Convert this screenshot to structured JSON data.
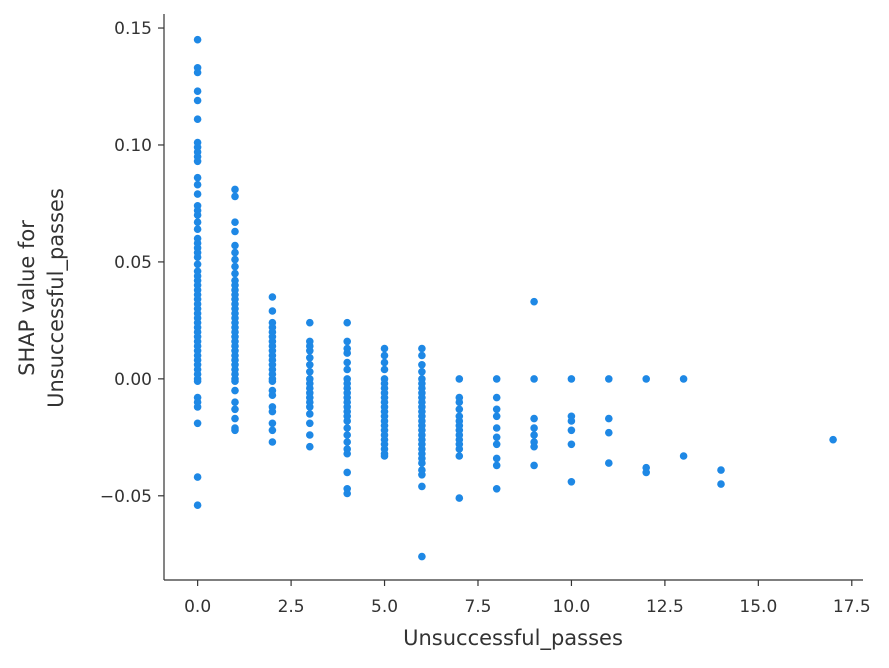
{
  "chart_data": {
    "type": "scatter",
    "title": "",
    "xlabel": "Unsuccessful_passes",
    "ylabel_lines": [
      "SHAP value for",
      "Unsuccessful_passes"
    ],
    "xlim": [
      -0.9,
      17.8
    ],
    "ylim": [
      -0.086,
      0.156
    ],
    "x_ticks": [
      0.0,
      2.5,
      5.0,
      7.5,
      10.0,
      12.5,
      15.0,
      17.5
    ],
    "x_tick_labels": [
      "0.0",
      "2.5",
      "5.0",
      "7.5",
      "10.0",
      "12.5",
      "15.0",
      "17.5"
    ],
    "y_ticks": [
      -0.05,
      0.0,
      0.05,
      0.1,
      0.15
    ],
    "y_tick_labels": [
      "−0.05",
      "0.00",
      "0.05",
      "0.10",
      "0.15"
    ],
    "grid": false,
    "marker_color": "#1E88E5",
    "series": [
      {
        "points": [
          [
            0,
            0.145
          ],
          [
            0,
            0.133
          ],
          [
            0,
            0.131
          ],
          [
            0,
            0.123
          ],
          [
            0,
            0.119
          ],
          [
            0,
            0.111
          ],
          [
            0,
            0.101
          ],
          [
            0,
            0.099
          ],
          [
            0,
            0.097
          ],
          [
            0,
            0.095
          ],
          [
            0,
            0.093
          ],
          [
            0,
            0.086
          ],
          [
            0,
            0.083
          ],
          [
            0,
            0.079
          ],
          [
            0,
            0.074
          ],
          [
            0,
            0.072
          ],
          [
            0,
            0.07
          ],
          [
            0,
            0.067
          ],
          [
            0,
            0.064
          ],
          [
            0,
            0.06
          ],
          [
            0,
            0.058
          ],
          [
            0,
            0.056
          ],
          [
            0,
            0.054
          ],
          [
            0,
            0.052
          ],
          [
            0,
            0.049
          ],
          [
            0,
            0.046
          ],
          [
            0,
            0.044
          ],
          [
            0,
            0.042
          ],
          [
            0,
            0.04
          ],
          [
            0,
            0.038
          ],
          [
            0,
            0.036
          ],
          [
            0,
            0.034
          ],
          [
            0,
            0.032
          ],
          [
            0,
            0.03
          ],
          [
            0,
            0.028
          ],
          [
            0,
            0.026
          ],
          [
            0,
            0.024
          ],
          [
            0,
            0.022
          ],
          [
            0,
            0.02
          ],
          [
            0,
            0.018
          ],
          [
            0,
            0.016
          ],
          [
            0,
            0.014
          ],
          [
            0,
            0.012
          ],
          [
            0,
            0.01
          ],
          [
            0,
            0.008
          ],
          [
            0,
            0.006
          ],
          [
            0,
            0.004
          ],
          [
            0,
            0.002
          ],
          [
            0,
            0.0
          ],
          [
            0,
            -0.001
          ],
          [
            0,
            -0.008
          ],
          [
            0,
            -0.01
          ],
          [
            0,
            -0.012
          ],
          [
            0,
            -0.019
          ],
          [
            0,
            -0.042
          ],
          [
            0,
            -0.054
          ],
          [
            1,
            0.081
          ],
          [
            1,
            0.078
          ],
          [
            1,
            0.067
          ],
          [
            1,
            0.063
          ],
          [
            1,
            0.057
          ],
          [
            1,
            0.054
          ],
          [
            1,
            0.051
          ],
          [
            1,
            0.048
          ],
          [
            1,
            0.045
          ],
          [
            1,
            0.042
          ],
          [
            1,
            0.04
          ],
          [
            1,
            0.038
          ],
          [
            1,
            0.036
          ],
          [
            1,
            0.034
          ],
          [
            1,
            0.032
          ],
          [
            1,
            0.03
          ],
          [
            1,
            0.028
          ],
          [
            1,
            0.026
          ],
          [
            1,
            0.024
          ],
          [
            1,
            0.022
          ],
          [
            1,
            0.02
          ],
          [
            1,
            0.018
          ],
          [
            1,
            0.016
          ],
          [
            1,
            0.014
          ],
          [
            1,
            0.012
          ],
          [
            1,
            0.01
          ],
          [
            1,
            0.008
          ],
          [
            1,
            0.006
          ],
          [
            1,
            0.004
          ],
          [
            1,
            0.002
          ],
          [
            1,
            0.0
          ],
          [
            1,
            -0.001
          ],
          [
            1,
            -0.005
          ],
          [
            1,
            -0.01
          ],
          [
            1,
            -0.013
          ],
          [
            1,
            -0.017
          ],
          [
            1,
            -0.021
          ],
          [
            1,
            -0.022
          ],
          [
            2,
            0.035
          ],
          [
            2,
            0.029
          ],
          [
            2,
            0.024
          ],
          [
            2,
            0.022
          ],
          [
            2,
            0.02
          ],
          [
            2,
            0.018
          ],
          [
            2,
            0.016
          ],
          [
            2,
            0.014
          ],
          [
            2,
            0.012
          ],
          [
            2,
            0.01
          ],
          [
            2,
            0.008
          ],
          [
            2,
            0.006
          ],
          [
            2,
            0.004
          ],
          [
            2,
            0.002
          ],
          [
            2,
            0.0
          ],
          [
            2,
            -0.001
          ],
          [
            2,
            -0.005
          ],
          [
            2,
            -0.007
          ],
          [
            2,
            -0.012
          ],
          [
            2,
            -0.014
          ],
          [
            2,
            -0.019
          ],
          [
            2,
            -0.022
          ],
          [
            2,
            -0.027
          ],
          [
            3,
            0.024
          ],
          [
            3,
            0.016
          ],
          [
            3,
            0.014
          ],
          [
            3,
            0.012
          ],
          [
            3,
            0.009
          ],
          [
            3,
            0.006
          ],
          [
            3,
            0.003
          ],
          [
            3,
            0.0
          ],
          [
            3,
            -0.002
          ],
          [
            3,
            -0.004
          ],
          [
            3,
            -0.006
          ],
          [
            3,
            -0.008
          ],
          [
            3,
            -0.01
          ],
          [
            3,
            -0.012
          ],
          [
            3,
            -0.015
          ],
          [
            3,
            -0.019
          ],
          [
            3,
            -0.024
          ],
          [
            3,
            -0.029
          ],
          [
            4,
            0.024
          ],
          [
            4,
            0.016
          ],
          [
            4,
            0.013
          ],
          [
            4,
            0.011
          ],
          [
            4,
            0.007
          ],
          [
            4,
            0.004
          ],
          [
            4,
            0.0
          ],
          [
            4,
            -0.002
          ],
          [
            4,
            -0.004
          ],
          [
            4,
            -0.006
          ],
          [
            4,
            -0.008
          ],
          [
            4,
            -0.01
          ],
          [
            4,
            -0.012
          ],
          [
            4,
            -0.014
          ],
          [
            4,
            -0.016
          ],
          [
            4,
            -0.018
          ],
          [
            4,
            -0.021
          ],
          [
            4,
            -0.024
          ],
          [
            4,
            -0.027
          ],
          [
            4,
            -0.03
          ],
          [
            4,
            -0.032
          ],
          [
            4,
            -0.04
          ],
          [
            4,
            -0.047
          ],
          [
            4,
            -0.049
          ],
          [
            5,
            0.013
          ],
          [
            5,
            0.01
          ],
          [
            5,
            0.007
          ],
          [
            5,
            0.004
          ],
          [
            5,
            0.0
          ],
          [
            5,
            -0.002
          ],
          [
            5,
            -0.004
          ],
          [
            5,
            -0.006
          ],
          [
            5,
            -0.008
          ],
          [
            5,
            -0.01
          ],
          [
            5,
            -0.012
          ],
          [
            5,
            -0.014
          ],
          [
            5,
            -0.016
          ],
          [
            5,
            -0.018
          ],
          [
            5,
            -0.02
          ],
          [
            5,
            -0.022
          ],
          [
            5,
            -0.024
          ],
          [
            5,
            -0.026
          ],
          [
            5,
            -0.028
          ],
          [
            5,
            -0.03
          ],
          [
            5,
            -0.032
          ],
          [
            5,
            -0.033
          ],
          [
            6,
            0.013
          ],
          [
            6,
            0.01
          ],
          [
            6,
            0.006
          ],
          [
            6,
            0.003
          ],
          [
            6,
            0.0
          ],
          [
            6,
            -0.002
          ],
          [
            6,
            -0.004
          ],
          [
            6,
            -0.006
          ],
          [
            6,
            -0.008
          ],
          [
            6,
            -0.01
          ],
          [
            6,
            -0.012
          ],
          [
            6,
            -0.014
          ],
          [
            6,
            -0.016
          ],
          [
            6,
            -0.018
          ],
          [
            6,
            -0.02
          ],
          [
            6,
            -0.022
          ],
          [
            6,
            -0.024
          ],
          [
            6,
            -0.026
          ],
          [
            6,
            -0.028
          ],
          [
            6,
            -0.03
          ],
          [
            6,
            -0.032
          ],
          [
            6,
            -0.034
          ],
          [
            6,
            -0.036
          ],
          [
            6,
            -0.039
          ],
          [
            6,
            -0.041
          ],
          [
            6,
            -0.046
          ],
          [
            6,
            -0.076
          ],
          [
            7,
            0.0
          ],
          [
            7,
            -0.008
          ],
          [
            7,
            -0.01
          ],
          [
            7,
            -0.013
          ],
          [
            7,
            -0.016
          ],
          [
            7,
            -0.018
          ],
          [
            7,
            -0.02
          ],
          [
            7,
            -0.022
          ],
          [
            7,
            -0.024
          ],
          [
            7,
            -0.026
          ],
          [
            7,
            -0.028
          ],
          [
            7,
            -0.03
          ],
          [
            7,
            -0.033
          ],
          [
            7,
            -0.051
          ],
          [
            8,
            0.0
          ],
          [
            8,
            -0.008
          ],
          [
            8,
            -0.013
          ],
          [
            8,
            -0.016
          ],
          [
            8,
            -0.021
          ],
          [
            8,
            -0.025
          ],
          [
            8,
            -0.028
          ],
          [
            8,
            -0.034
          ],
          [
            8,
            -0.037
          ],
          [
            8,
            -0.047
          ],
          [
            9,
            0.033
          ],
          [
            9,
            0.0
          ],
          [
            9,
            -0.017
          ],
          [
            9,
            -0.021
          ],
          [
            9,
            -0.024
          ],
          [
            9,
            -0.027
          ],
          [
            9,
            -0.029
          ],
          [
            9,
            -0.037
          ],
          [
            10,
            0.0
          ],
          [
            10,
            -0.016
          ],
          [
            10,
            -0.018
          ],
          [
            10,
            -0.022
          ],
          [
            10,
            -0.028
          ],
          [
            10,
            -0.044
          ],
          [
            11,
            0.0
          ],
          [
            11,
            -0.017
          ],
          [
            11,
            -0.023
          ],
          [
            11,
            -0.036
          ],
          [
            12,
            0.0
          ],
          [
            12,
            -0.038
          ],
          [
            12,
            -0.04
          ],
          [
            13,
            0.0
          ],
          [
            13,
            -0.033
          ],
          [
            14,
            -0.039
          ],
          [
            14,
            -0.045
          ],
          [
            17,
            -0.026
          ]
        ]
      }
    ]
  }
}
